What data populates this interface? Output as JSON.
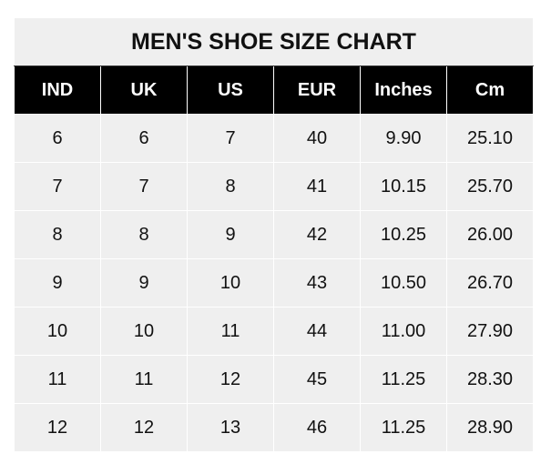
{
  "title": "MEN'S SHOE SIZE CHART",
  "colors": {
    "header_bg": "#000000",
    "cell_bg": "#efefef"
  },
  "chart_data": {
    "type": "table",
    "title": "MEN'S SHOE SIZE CHART",
    "columns": [
      "IND",
      "UK",
      "US",
      "EUR",
      "Inches",
      "Cm"
    ],
    "rows": [
      [
        "6",
        "6",
        "7",
        "40",
        "9.90",
        "25.10"
      ],
      [
        "7",
        "7",
        "8",
        "41",
        "10.15",
        "25.70"
      ],
      [
        "8",
        "8",
        "9",
        "42",
        "10.25",
        "26.00"
      ],
      [
        "9",
        "9",
        "10",
        "43",
        "10.50",
        "26.70"
      ],
      [
        "10",
        "10",
        "11",
        "44",
        "11.00",
        "27.90"
      ],
      [
        "11",
        "11",
        "12",
        "45",
        "11.25",
        "28.30"
      ],
      [
        "12",
        "12",
        "13",
        "46",
        "11.25",
        "28.90"
      ]
    ]
  }
}
